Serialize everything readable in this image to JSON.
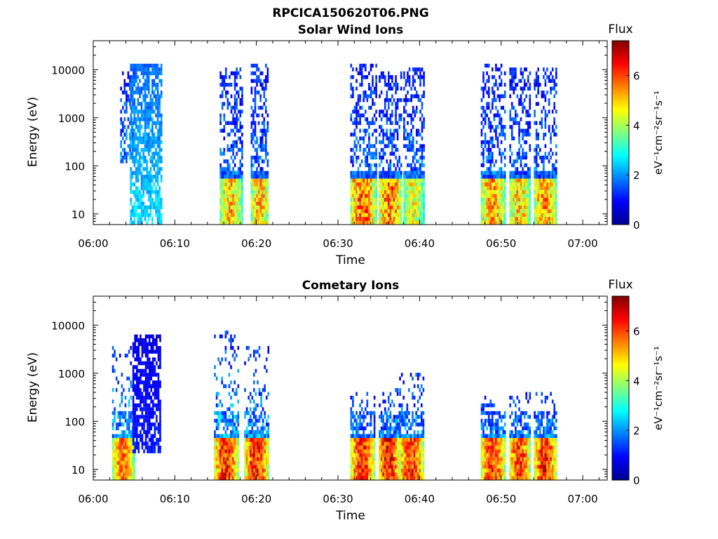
{
  "figure": {
    "title": "RPCICA150620T06.PNG"
  },
  "chart_data": [
    {
      "type": "heatmap",
      "title": "Solar Wind Ions",
      "xlabel": "Time",
      "ylabel": "Energy (eV)",
      "x_ticks": [
        "06:00",
        "06:10",
        "06:20",
        "06:30",
        "06:40",
        "06:50",
        "07:00"
      ],
      "x_range": [
        "06:00",
        "07:03"
      ],
      "y_scale": "log",
      "y_ticks": [
        10,
        100,
        1000,
        10000
      ],
      "y_range": [
        6,
        40000
      ],
      "colorbar": {
        "title": "Flux",
        "label": "eV⁻¹cm⁻²sr⁻¹s⁻¹",
        "ticks": [
          0,
          2,
          4,
          6
        ],
        "range": [
          0,
          7.4
        ]
      },
      "bursts": [
        {
          "start": "06:03.3",
          "end": "06:05.0",
          "emin": 110,
          "emax": 9000,
          "peak": 4.8
        },
        {
          "start": "06:04.5",
          "end": "06:08.3",
          "emin": 6,
          "emax": 14000,
          "peak": 2.8,
          "banded": true
        },
        {
          "start": "06:15.5",
          "end": "06:18.2",
          "emin": 6,
          "emax": 12000,
          "peak": 5.5
        },
        {
          "start": "06:19.3",
          "end": "06:21.5",
          "emin": 6,
          "emax": 14000,
          "peak": 5.6
        },
        {
          "start": "06:31.5",
          "end": "06:34.6",
          "emin": 6,
          "emax": 14000,
          "peak": 6.3
        },
        {
          "start": "06:35.0",
          "end": "06:37.8",
          "emin": 6,
          "emax": 9000,
          "peak": 6.2
        },
        {
          "start": "06:38.0",
          "end": "06:40.5",
          "emin": 6,
          "emax": 12000,
          "peak": 5.0
        },
        {
          "start": "06:47.5",
          "end": "06:50.5",
          "emin": 6,
          "emax": 14000,
          "peak": 5.8
        },
        {
          "start": "06:51.0",
          "end": "06:53.5",
          "emin": 6,
          "emax": 12000,
          "peak": 5.5
        },
        {
          "start": "06:54.0",
          "end": "06:56.8",
          "emin": 6,
          "emax": 12000,
          "peak": 5.9
        }
      ]
    },
    {
      "type": "heatmap",
      "title": "Cometary Ions",
      "xlabel": "Time",
      "ylabel": "Energy (eV)",
      "x_ticks": [
        "06:00",
        "06:10",
        "06:20",
        "06:30",
        "06:40",
        "06:50",
        "07:00"
      ],
      "x_range": [
        "06:00",
        "07:03"
      ],
      "y_scale": "log",
      "y_ticks": [
        10,
        100,
        1000,
        10000
      ],
      "y_range": [
        6,
        40000
      ],
      "colorbar": {
        "title": "Flux",
        "label": "eV⁻¹cm⁻²sr⁻¹s⁻¹",
        "ticks": [
          0,
          2,
          4,
          6
        ],
        "range": [
          0,
          7.4
        ]
      },
      "bursts": [
        {
          "start": "06:02.3",
          "end": "06:05.0",
          "emin": 6,
          "emax": 4000,
          "peak": 6.2
        },
        {
          "start": "06:04.8",
          "end": "06:08.3",
          "emin": 22,
          "emax": 6500,
          "peak": 1.2,
          "banded": true
        },
        {
          "start": "06:14.8",
          "end": "06:17.8",
          "emin": 6,
          "emax": 8000,
          "peak": 6.9
        },
        {
          "start": "06:18.5",
          "end": "06:21.5",
          "emin": 6,
          "emax": 3500,
          "peak": 6.9
        },
        {
          "start": "06:31.5",
          "end": "06:34.5",
          "emin": 6,
          "emax": 400,
          "peak": 6.8
        },
        {
          "start": "06:35.0",
          "end": "06:37.5",
          "emin": 6,
          "emax": 500,
          "peak": 7.2
        },
        {
          "start": "06:37.5",
          "end": "06:40.5",
          "emin": 6,
          "emax": 1000,
          "peak": 6.8
        },
        {
          "start": "06:47.5",
          "end": "06:50.5",
          "emin": 6,
          "emax": 400,
          "peak": 6.7
        },
        {
          "start": "06:51.0",
          "end": "06:53.5",
          "emin": 6,
          "emax": 400,
          "peak": 6.8
        },
        {
          "start": "06:54.0",
          "end": "06:56.8",
          "emin": 6,
          "emax": 400,
          "peak": 6.9
        }
      ]
    }
  ]
}
